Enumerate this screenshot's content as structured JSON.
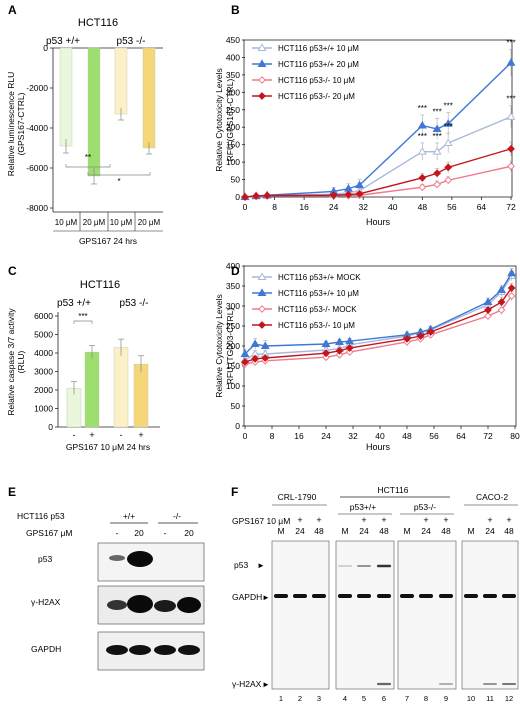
{
  "panels": {
    "A": {
      "letter": "A",
      "title": "HCT116",
      "groups": [
        "p53 +/+",
        "p53 -/-"
      ],
      "ylabel1": "Relative luminescence RLU",
      "ylabel2": "(GPS167-CTRL)",
      "yticks": [
        "0",
        "-2000",
        "-4000",
        "-6000",
        "-8000"
      ],
      "bar_labels": [
        "10 μM",
        "20 μM",
        "10 μM",
        "20 μM"
      ],
      "xlabel": "GPS167 24 hrs",
      "sig": [
        "**",
        "*"
      ]
    },
    "B": {
      "letter": "B",
      "ylabel1": "Relative Cytotoxicity Levels",
      "ylabel2": "RFU (GPS167-CTRL)",
      "xlabel": "Hours",
      "xticks": [
        "0",
        "8",
        "16",
        "24",
        "32",
        "40",
        "48",
        "56",
        "64",
        "72"
      ],
      "yticks": [
        "0",
        "50",
        "100",
        "150",
        "200",
        "250",
        "300",
        "350",
        "400",
        "450"
      ],
      "legend": [
        "HCT116 p53+/+ 10 μM",
        "HCT116 p53+/+ 20 μM",
        "HCT116 p53-/- 10 μM",
        "HCT116 p53-/- 20 μM"
      ],
      "sig": "***"
    },
    "C": {
      "letter": "C",
      "title": "HCT116",
      "groups": [
        "p53 +/+",
        "p53 -/-"
      ],
      "ylabel1": "Relative caspase 3/7 activity",
      "ylabel2": "(RLU)",
      "yticks": [
        "0",
        "1000",
        "2000",
        "3000",
        "4000",
        "5000",
        "6000"
      ],
      "bar_labels": [
        "-",
        "+",
        "-",
        "+"
      ],
      "xlabel": "GPS167 10 μM 24 hrs",
      "sig": "***"
    },
    "D": {
      "letter": "D",
      "ylabel1": "Relative Cytotoxicity Levels",
      "ylabel2": "RFU (TG003-CTRL)",
      "xlabel": "Hours",
      "xticks": [
        "0",
        "8",
        "16",
        "24",
        "32",
        "40",
        "48",
        "56",
        "64",
        "72",
        "80"
      ],
      "yticks": [
        "0",
        "50",
        "100",
        "150",
        "200",
        "250",
        "300",
        "350",
        "400"
      ],
      "legend": [
        "HCT116 p53+/+ MOCK",
        "HCT116 p53+/+ 10 μM",
        "HCT116 p53-/- MOCK",
        "HCT116 p53-/- 10 μM"
      ]
    },
    "E": {
      "letter": "E",
      "row1_label": "HCT116 p53",
      "geno": [
        "+/+",
        "-/-"
      ],
      "row2_label": "GPS167 μM",
      "doses": [
        "-",
        "20",
        "-",
        "20"
      ],
      "blots": [
        "p53",
        "γ-H2AX",
        "GAPDH"
      ]
    },
    "F": {
      "letter": "F",
      "groups": [
        "CRL-1790",
        "HCT116",
        "CACO-2"
      ],
      "subgroups": [
        "p53+/+",
        "p53-/-"
      ],
      "treat_label": "GPS167 10 μM",
      "plus_row": [
        "",
        "+",
        "+",
        "",
        "+",
        "+",
        "",
        "+",
        "+",
        "",
        "+",
        "+"
      ],
      "time_row": [
        "M",
        "24",
        "48",
        "M",
        "24",
        "48",
        "M",
        "24",
        "48",
        "M",
        "24",
        "48"
      ],
      "blots": [
        "p53",
        "GAPDH",
        "γ-H2AX"
      ],
      "lanes": [
        "1",
        "2",
        "3",
        "4",
        "5",
        "6",
        "7",
        "8",
        "9",
        "10",
        "11",
        "12"
      ]
    }
  },
  "colors": {
    "light_green": "#eaf7dc",
    "green": "#9ede6e",
    "light_yellow": "#fbf0c8",
    "yellow": "#f5d77a",
    "light_blue": "#a9b9dc",
    "blue": "#3f78d6",
    "pink": "#f07a8d",
    "red": "#c3161c"
  },
  "chart_data": [
    {
      "panel": "A",
      "type": "bar",
      "categories": [
        "p53 +/+ 10 μM",
        "p53 +/+ 20 μM",
        "p53 -/- 10 μM",
        "p53 -/- 20 μM"
      ],
      "values": [
        -4900,
        -6400,
        -3300,
        -5000
      ],
      "errors": [
        350,
        400,
        300,
        300
      ],
      "ylim": [
        -8000,
        0
      ]
    },
    {
      "panel": "B",
      "type": "line",
      "x": [
        0,
        3,
        6,
        24,
        28,
        31,
        48,
        52,
        55,
        72
      ],
      "series": [
        {
          "name": "HCT116 p53+/+ 10 μM",
          "values": [
            0,
            2,
            4,
            8,
            12,
            18,
            130,
            130,
            155,
            230
          ],
          "errors": [
            4,
            4,
            5,
            8,
            10,
            12,
            25,
            25,
            28,
            32
          ]
        },
        {
          "name": "HCT116 p53+/+ 20 μM",
          "values": [
            0,
            3,
            5,
            16,
            24,
            34,
            205,
            195,
            210,
            385
          ],
          "errors": [
            5,
            5,
            6,
            12,
            14,
            16,
            30,
            30,
            32,
            38
          ]
        },
        {
          "name": "HCT116 p53-/- 10 μM",
          "values": [
            0,
            2,
            3,
            3,
            4,
            5,
            28,
            36,
            48,
            88
          ],
          "errors": [
            3,
            3,
            3,
            4,
            4,
            5,
            8,
            10,
            10,
            15
          ]
        },
        {
          "name": "HCT116 p53-/- 20 μM",
          "values": [
            0,
            3,
            4,
            5,
            7,
            9,
            55,
            68,
            85,
            138
          ],
          "errors": [
            3,
            3,
            4,
            5,
            6,
            6,
            12,
            14,
            15,
            20
          ]
        }
      ],
      "xlim": [
        0,
        72
      ],
      "ylim": [
        0,
        450
      ]
    },
    {
      "panel": "C",
      "type": "bar",
      "categories": [
        "p53 +/+ -",
        "p53 +/+ +",
        "p53 -/- -",
        "p53 -/- +"
      ],
      "values": [
        2100,
        4050,
        4300,
        3400
      ],
      "errors": [
        350,
        350,
        450,
        450
      ],
      "ylim": [
        0,
        6000
      ]
    },
    {
      "panel": "D",
      "type": "line",
      "x": [
        0,
        3,
        6,
        24,
        28,
        31,
        48,
        52,
        55,
        72,
        76,
        79
      ],
      "series": [
        {
          "name": "HCT116 p53+/+ MOCK",
          "values": [
            165,
            180,
            180,
            190,
            193,
            203,
            225,
            233,
            240,
            303,
            335,
            375
          ],
          "errors": [
            8,
            8,
            8,
            7,
            7,
            7,
            7,
            7,
            7,
            10,
            12,
            12
          ]
        },
        {
          "name": "HCT116 p53+/+ 10 μM",
          "values": [
            180,
            205,
            200,
            205,
            210,
            212,
            228,
            235,
            242,
            310,
            340,
            382
          ],
          "errors": [
            12,
            14,
            14,
            7,
            7,
            7,
            7,
            7,
            7,
            10,
            12,
            12
          ]
        },
        {
          "name": "HCT116 p53-/- MOCK",
          "values": [
            155,
            160,
            163,
            172,
            178,
            185,
            210,
            218,
            228,
            275,
            290,
            325
          ],
          "errors": [
            8,
            8,
            8,
            7,
            7,
            7,
            7,
            7,
            7,
            10,
            12,
            12
          ]
        },
        {
          "name": "HCT116 p53-/- 10 μM",
          "values": [
            160,
            168,
            170,
            182,
            188,
            195,
            218,
            225,
            235,
            290,
            310,
            345
          ],
          "errors": [
            8,
            8,
            8,
            7,
            7,
            7,
            7,
            7,
            7,
            10,
            12,
            12
          ]
        }
      ],
      "xlim": [
        0,
        80
      ],
      "ylim": [
        0,
        400
      ]
    }
  ]
}
